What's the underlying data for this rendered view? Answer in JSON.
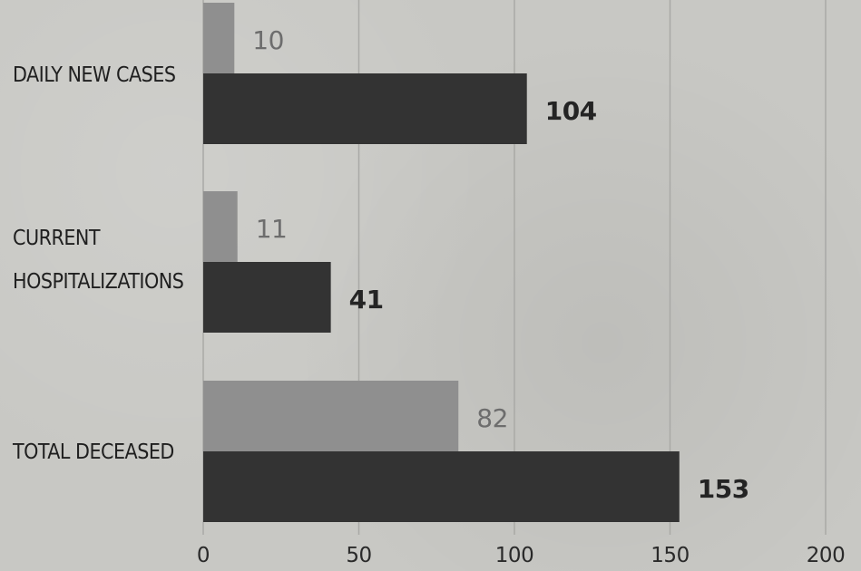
{
  "chart_data": {
    "type": "bar",
    "orientation": "horizontal",
    "title": "",
    "xlabel": "",
    "ylabel": "",
    "categories": [
      [
        "DAILY NEW CASES"
      ],
      [
        "CURRENT",
        "HOSPITALIZATIONS"
      ],
      [
        "TOTAL DECEASED"
      ]
    ],
    "series": [
      {
        "values": [
          10,
          11,
          82
        ],
        "color": "#8f8f8f"
      },
      {
        "values": [
          104,
          41,
          153
        ],
        "color": "#333333"
      }
    ],
    "xticks": [
      "0",
      "50",
      "100",
      "150",
      "200"
    ],
    "xlim": [
      0,
      200
    ],
    "grid": true,
    "legend": "none",
    "data_labels": true
  }
}
